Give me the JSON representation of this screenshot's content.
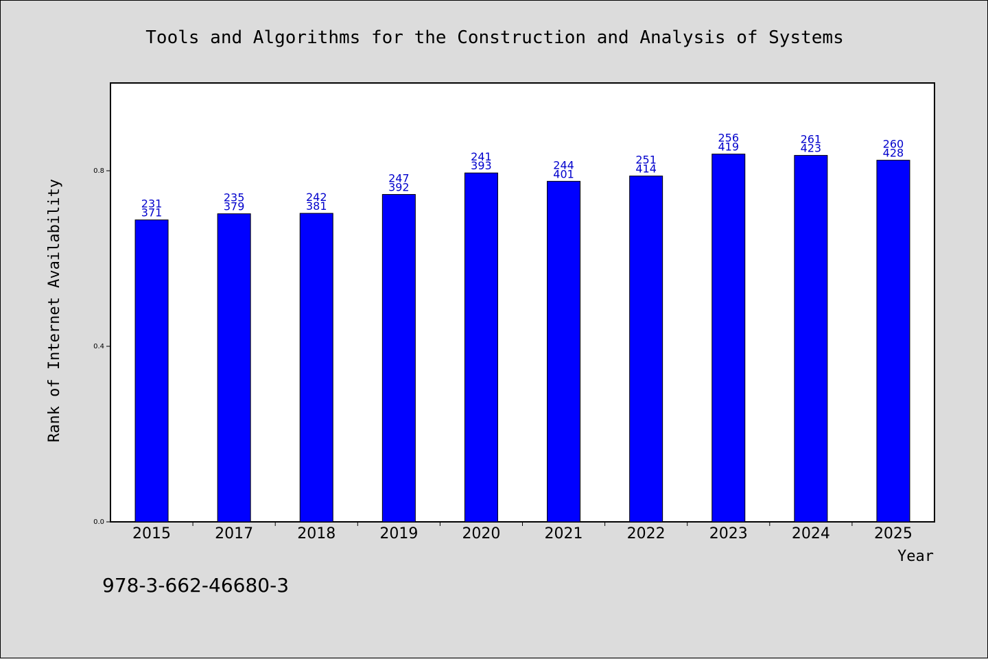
{
  "chart_data": {
    "type": "bar",
    "title": "Tools and Algorithms for the Construction and Analysis of Systems",
    "xlabel": "Year",
    "ylabel": "Rank of Internet Availability",
    "categories": [
      "2015",
      "2017",
      "2018",
      "2019",
      "2020",
      "2021",
      "2022",
      "2023",
      "2024",
      "2025"
    ],
    "values": [
      0.688,
      0.702,
      0.703,
      0.746,
      0.795,
      0.776,
      0.788,
      0.838,
      0.835,
      0.824
    ],
    "labels_top": [
      "231",
      "235",
      "242",
      "247",
      "241",
      "244",
      "251",
      "256",
      "261",
      "260"
    ],
    "labels_bottom": [
      "371",
      "379",
      "381",
      "392",
      "393",
      "401",
      "414",
      "419",
      "423",
      "428"
    ],
    "yticks": [
      "0.0",
      "0.4",
      "0.8"
    ],
    "ylim": [
      0,
      1.0
    ],
    "grid": false,
    "bar_color": "#0000ff",
    "label_color": "#0000cc"
  },
  "footer": {
    "isbn": "978-3-662-46680-3"
  }
}
